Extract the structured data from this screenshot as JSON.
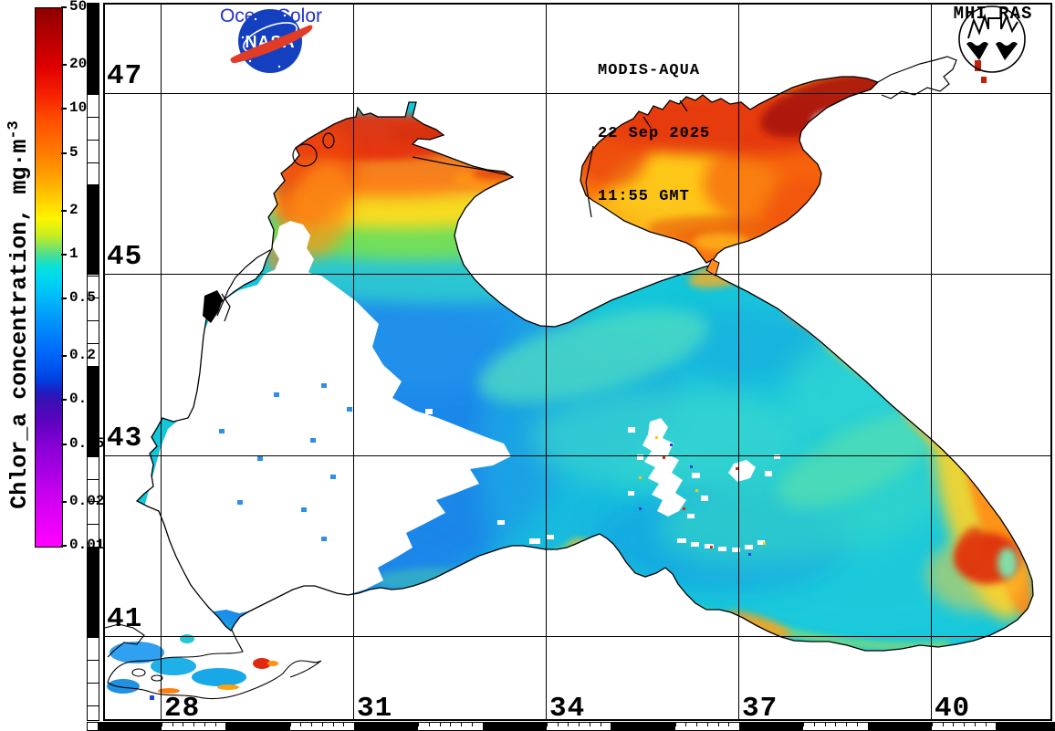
{
  "branding": {
    "nasa_wordmark": "NASA",
    "nasa_program": "OceanColor",
    "institute": "MHI RAS"
  },
  "acquisition": {
    "sensor": "MODIS-AQUA",
    "date": "22 Sep 2025",
    "time": "11:55 GMT"
  },
  "colorbar": {
    "title": "Chlor_a concentration, mg·m",
    "title_superscript": "-3",
    "scale": "log",
    "max": 50,
    "min": 0.01,
    "ticks": [
      "50",
      "20",
      "10",
      "5",
      "2",
      "1",
      "0.5",
      "0.2",
      "0.1",
      "0.05",
      "0.02",
      "0.01"
    ],
    "gradient_stops": [
      [
        0,
        "#8c0000"
      ],
      [
        5,
        "#b40000"
      ],
      [
        11,
        "#e00000"
      ],
      [
        16,
        "#f52000"
      ],
      [
        21,
        "#ff5000"
      ],
      [
        27,
        "#ff7c00"
      ],
      [
        32,
        "#ffa800"
      ],
      [
        36,
        "#ffd400"
      ],
      [
        39,
        "#fff400"
      ],
      [
        42,
        "#ccee1c"
      ],
      [
        44,
        "#8ce655"
      ],
      [
        46,
        "#44dd9a"
      ],
      [
        48,
        "#0ae2d8"
      ],
      [
        50,
        "#00d8f0"
      ],
      [
        54,
        "#00b8f8"
      ],
      [
        58,
        "#0096fa"
      ],
      [
        63,
        "#006efa"
      ],
      [
        66,
        "#005af2"
      ],
      [
        69,
        "#0040e0"
      ],
      [
        71,
        "#1c20c4"
      ],
      [
        73,
        "#3a10b4"
      ],
      [
        77,
        "#6002c0"
      ],
      [
        81,
        "#8400d2"
      ],
      [
        86,
        "#a800e4"
      ],
      [
        92,
        "#d400f2"
      ],
      [
        100,
        "#ff00ff"
      ]
    ]
  },
  "graticule": {
    "latitudes": [
      47,
      45,
      43,
      41
    ],
    "latitude_labels": [
      "47",
      "45",
      "43",
      "41"
    ],
    "longitudes": [
      28,
      31,
      34,
      37,
      40
    ],
    "longitude_labels": [
      "28",
      "31",
      "34",
      "37",
      "40"
    ]
  },
  "palette": {
    "sea_base": "#14c6da",
    "west_basin_blue": "#1f84ea",
    "azov_base": "#fa7410",
    "azov_taganrog_dark_red": "#a81508",
    "nw_shelf_red": "#e63208",
    "nw_shelf_orange": "#ff7c12",
    "nw_shelf_yellow": "#ffdc1e",
    "se_eddy_red": "#dd2c0a",
    "east_coast_yellow": "#ffd426",
    "cloud_gap": "#ffffff",
    "nasa_blue": "#1440c0",
    "nasa_red": "#e23b28",
    "oceancolor_blue": "#2233cc"
  }
}
